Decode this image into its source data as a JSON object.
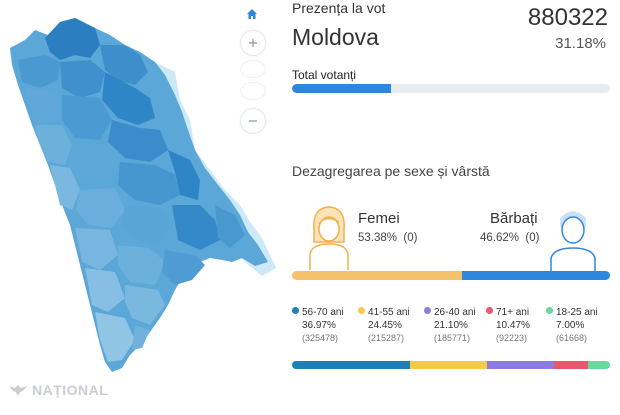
{
  "header": {
    "title": "Prezența la vot",
    "region": "Moldova",
    "total_count": "880322",
    "turnout_percent": "31.18%"
  },
  "turnout_bar": {
    "label": "Total votanți",
    "fill_fraction": 0.3118,
    "color": "#2e86de"
  },
  "gender": {
    "section_title": "Dezagregarea pe sexe și vârstă",
    "female": {
      "label": "Femei",
      "percent": "53.38%",
      "count": "(0)",
      "share": 0.5338,
      "color": "#f5c26b"
    },
    "male": {
      "label": "Bărbați",
      "percent": "46.62%",
      "count": "(0)",
      "share": 0.4662,
      "color": "#2e86de"
    }
  },
  "age_groups": [
    {
      "label": "56-70 ani",
      "percent": "36.97%",
      "count": "(325478)",
      "share": 0.3697,
      "color": "#1f7fb6"
    },
    {
      "label": "41-55 ani",
      "percent": "24.45%",
      "count": "(215287)",
      "share": 0.2445,
      "color": "#f7c948"
    },
    {
      "label": "26-40 ani",
      "percent": "21.10%",
      "count": "(185771)",
      "share": 0.211,
      "color": "#8e7be0"
    },
    {
      "label": "71+ ani",
      "percent": "10.47%",
      "count": "(92223)",
      "share": 0.1047,
      "color": "#e8576b"
    },
    {
      "label": "18-25 ani",
      "percent": "7.00%",
      "count": "(61668)",
      "share": 0.07,
      "color": "#69d99b"
    }
  ],
  "map_controls": {
    "home_icon": "home-icon",
    "zoom_in_icon": "plus-icon",
    "zoom_out_icon": "minus-icon"
  },
  "watermark": {
    "text": "NAȚIONAL"
  }
}
